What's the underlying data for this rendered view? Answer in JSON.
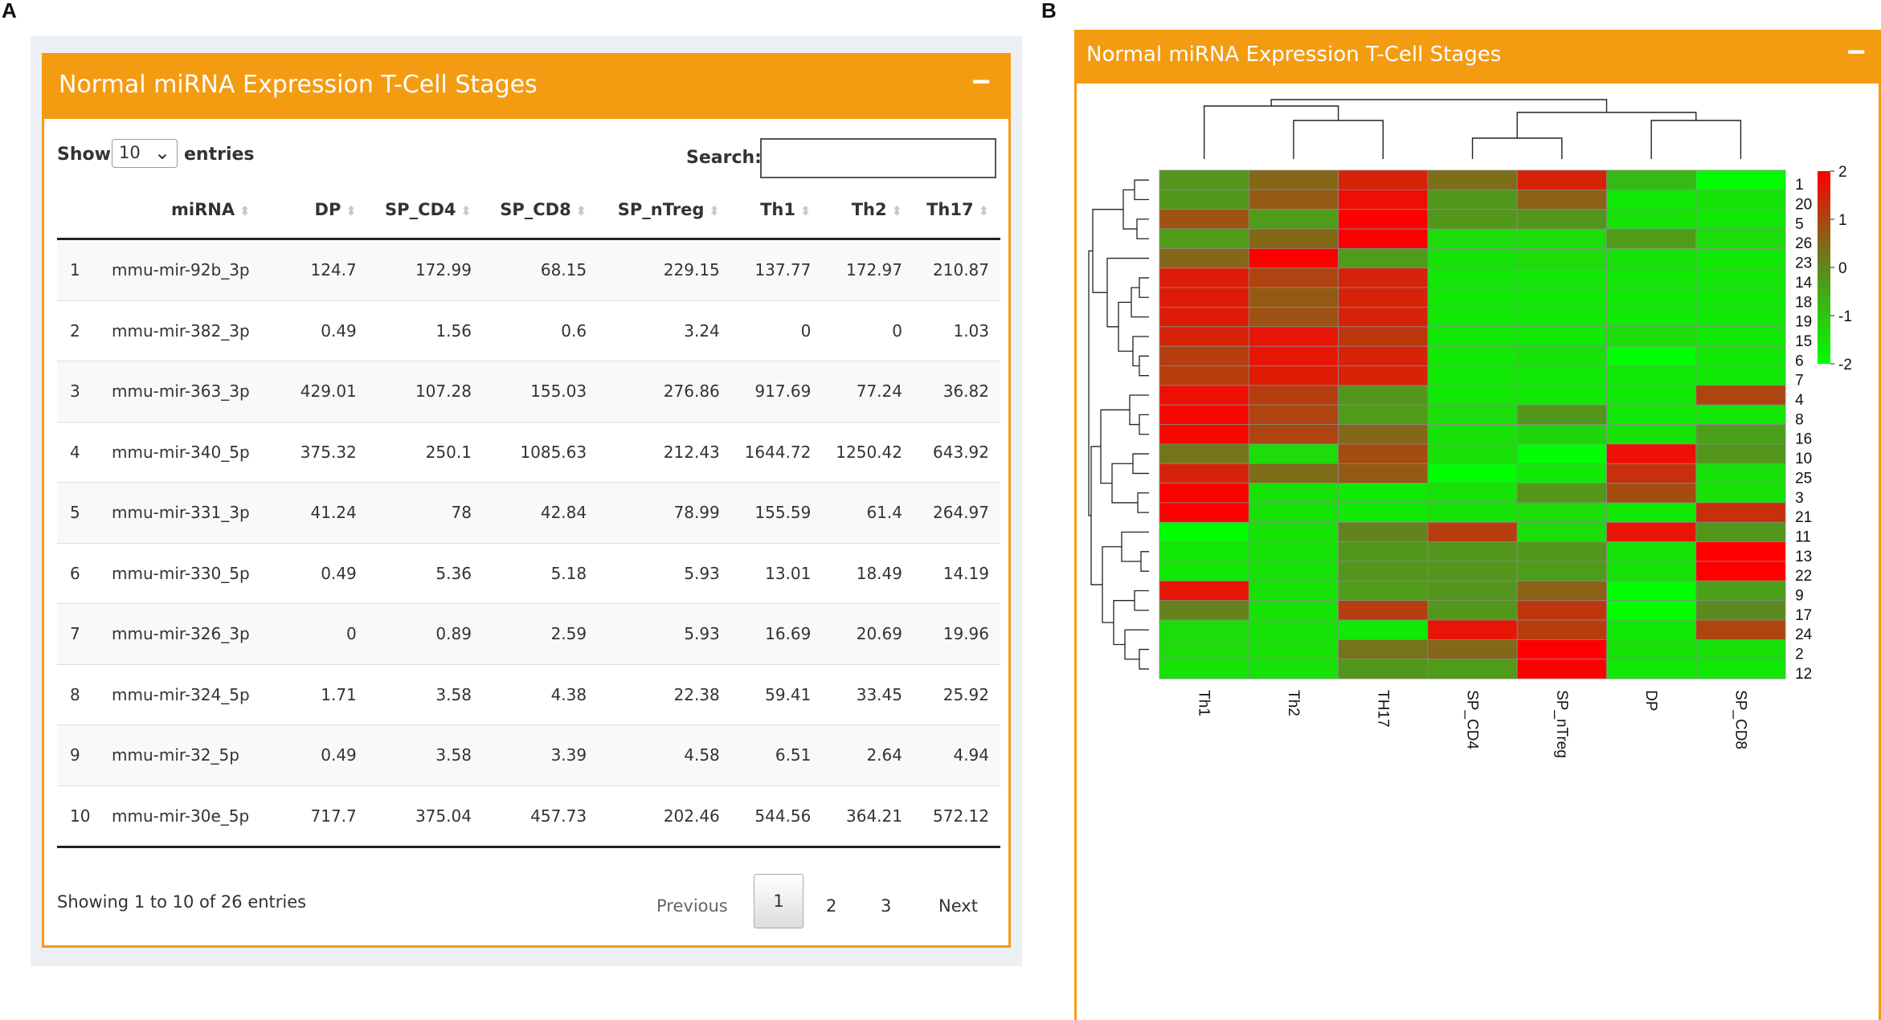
{
  "panel_labels": {
    "a": "A",
    "b": "B"
  },
  "colors": {
    "accent": "#f39c12",
    "low": "#00ff00",
    "mid": "#5c8a1f",
    "high": "#ff0000"
  },
  "table_panel": {
    "title": "Normal miRNA Expression T-Cell Stages",
    "collapse_label": "−",
    "show_label": "Show",
    "page_length": "10",
    "entries_label": "entries",
    "search_label": "Search:",
    "search_value": "",
    "columns": [
      "",
      "miRNA",
      "DP",
      "SP_CD4",
      "SP_CD8",
      "SP_nTreg",
      "Th1",
      "Th2",
      "Th17"
    ],
    "rows": [
      [
        "1",
        "mmu-mir-92b_3p",
        "124.7",
        "172.99",
        "68.15",
        "229.15",
        "137.77",
        "172.97",
        "210.87"
      ],
      [
        "2",
        "mmu-mir-382_3p",
        "0.49",
        "1.56",
        "0.6",
        "3.24",
        "0",
        "0",
        "1.03"
      ],
      [
        "3",
        "mmu-mir-363_3p",
        "429.01",
        "107.28",
        "155.03",
        "276.86",
        "917.69",
        "77.24",
        "36.82"
      ],
      [
        "4",
        "mmu-mir-340_5p",
        "375.32",
        "250.1",
        "1085.63",
        "212.43",
        "1644.72",
        "1250.42",
        "643.92"
      ],
      [
        "5",
        "mmu-mir-331_3p",
        "41.24",
        "78",
        "42.84",
        "78.99",
        "155.59",
        "61.4",
        "264.97"
      ],
      [
        "6",
        "mmu-mir-330_5p",
        "0.49",
        "5.36",
        "5.18",
        "5.93",
        "13.01",
        "18.49",
        "14.19"
      ],
      [
        "7",
        "mmu-mir-326_3p",
        "0",
        "0.89",
        "2.59",
        "5.93",
        "16.69",
        "20.69",
        "19.96"
      ],
      [
        "8",
        "mmu-mir-324_5p",
        "1.71",
        "3.58",
        "4.38",
        "22.38",
        "59.41",
        "33.45",
        "25.92"
      ],
      [
        "9",
        "mmu-mir-32_5p",
        "0.49",
        "3.58",
        "3.39",
        "4.58",
        "6.51",
        "2.64",
        "4.94"
      ],
      [
        "10",
        "mmu-mir-30e_5p",
        "717.7",
        "375.04",
        "457.73",
        "202.46",
        "544.56",
        "364.21",
        "572.12"
      ]
    ],
    "info": "Showing 1 to 10 of 26 entries",
    "pagination": {
      "previous": "Previous",
      "pages": [
        "1",
        "2",
        "3"
      ],
      "current": "1",
      "next": "Next"
    }
  },
  "heatmap_panel": {
    "title": "Normal miRNA Expression T-Cell Stages",
    "collapse_label": "−"
  },
  "chart_data": {
    "type": "heatmap",
    "title": "Normal miRNA Expression T-Cell Stages",
    "columns": [
      "Th1",
      "Th2",
      "TH17",
      "SP_CD4",
      "SP_nTreg",
      "DP",
      "SP_CD8"
    ],
    "rows": [
      "1",
      "20",
      "5",
      "26",
      "23",
      "14",
      "18",
      "19",
      "15",
      "6",
      "7",
      "4",
      "8",
      "16",
      "10",
      "25",
      "3",
      "21",
      "11",
      "13",
      "22",
      "9",
      "17",
      "24",
      "2",
      "12"
    ],
    "values": [
      [
        -0.2,
        0.5,
        1.5,
        0.4,
        1.5,
        -0.8,
        -2
      ],
      [
        -0.2,
        0.7,
        1.8,
        -0.2,
        0.6,
        -1.6,
        -1.5
      ],
      [
        0.8,
        -0.3,
        2,
        -0.2,
        -0.2,
        -1.5,
        -1.6
      ],
      [
        -0.3,
        0.5,
        2,
        -1.4,
        -1.4,
        -0.3,
        -1.4
      ],
      [
        0.5,
        2,
        -0.3,
        -1.5,
        -1.4,
        -1.5,
        -1.6
      ],
      [
        1.6,
        1.0,
        1.5,
        -1.6,
        -1.6,
        -1.6,
        -1.6
      ],
      [
        1.6,
        0.7,
        1.5,
        -1.6,
        -1.6,
        -1.6,
        -1.6
      ],
      [
        1.6,
        0.8,
        1.5,
        -1.6,
        -1.6,
        -1.6,
        -1.6
      ],
      [
        1.5,
        1.7,
        1.2,
        -1.6,
        -1.6,
        -1.4,
        -1.6
      ],
      [
        1.1,
        1.7,
        1.5,
        -1.6,
        -1.5,
        -2,
        -1.6
      ],
      [
        1.1,
        1.6,
        1.5,
        -1.6,
        -1.6,
        -1.6,
        -1.6
      ],
      [
        1.8,
        1.1,
        -0.2,
        -1.6,
        -1.6,
        -1.6,
        1.0
      ],
      [
        1.9,
        1.0,
        -0.3,
        -1.4,
        -0.2,
        -1.6,
        -1.6
      ],
      [
        1.9,
        1.0,
        0.5,
        -1.5,
        -1.3,
        -1.5,
        -0.4
      ],
      [
        0.3,
        -1.4,
        0.9,
        -1.5,
        -2.2,
        1.8,
        -0.2
      ],
      [
        1.5,
        0.4,
        0.7,
        -2,
        -1.6,
        1.3,
        -1.5
      ],
      [
        2,
        -1.5,
        -1.6,
        -1.5,
        -0.2,
        0.9,
        -1.5
      ],
      [
        2,
        -1.5,
        -1.6,
        -1.5,
        -1.4,
        -1.6,
        1.3
      ],
      [
        -2.2,
        -1.5,
        0.1,
        1.1,
        -1.4,
        1.7,
        -0.2
      ],
      [
        -1.6,
        -1.5,
        -0.2,
        -0.2,
        -0.2,
        -1.5,
        2
      ],
      [
        -1.6,
        -1.5,
        -0.2,
        -0.2,
        -0.3,
        -1.5,
        2
      ],
      [
        1.7,
        -1.5,
        -0.3,
        -0.2,
        0.6,
        -2.3,
        -0.4
      ],
      [
        0.1,
        -1.5,
        1.1,
        -0.2,
        1.2,
        -2.4,
        0
      ],
      [
        -1.4,
        -1.5,
        -1.6,
        1.7,
        1.1,
        -1.6,
        1.0
      ],
      [
        -1.4,
        -1.5,
        0.3,
        0.5,
        2,
        -1.5,
        -1.5
      ],
      [
        -1.5,
        -1.5,
        -0.2,
        -0.3,
        2,
        -1.6,
        -1.6
      ]
    ],
    "legend": {
      "min": -2,
      "max": 2,
      "ticks": [
        "2",
        "1",
        "0",
        "-1",
        "-2"
      ]
    }
  }
}
